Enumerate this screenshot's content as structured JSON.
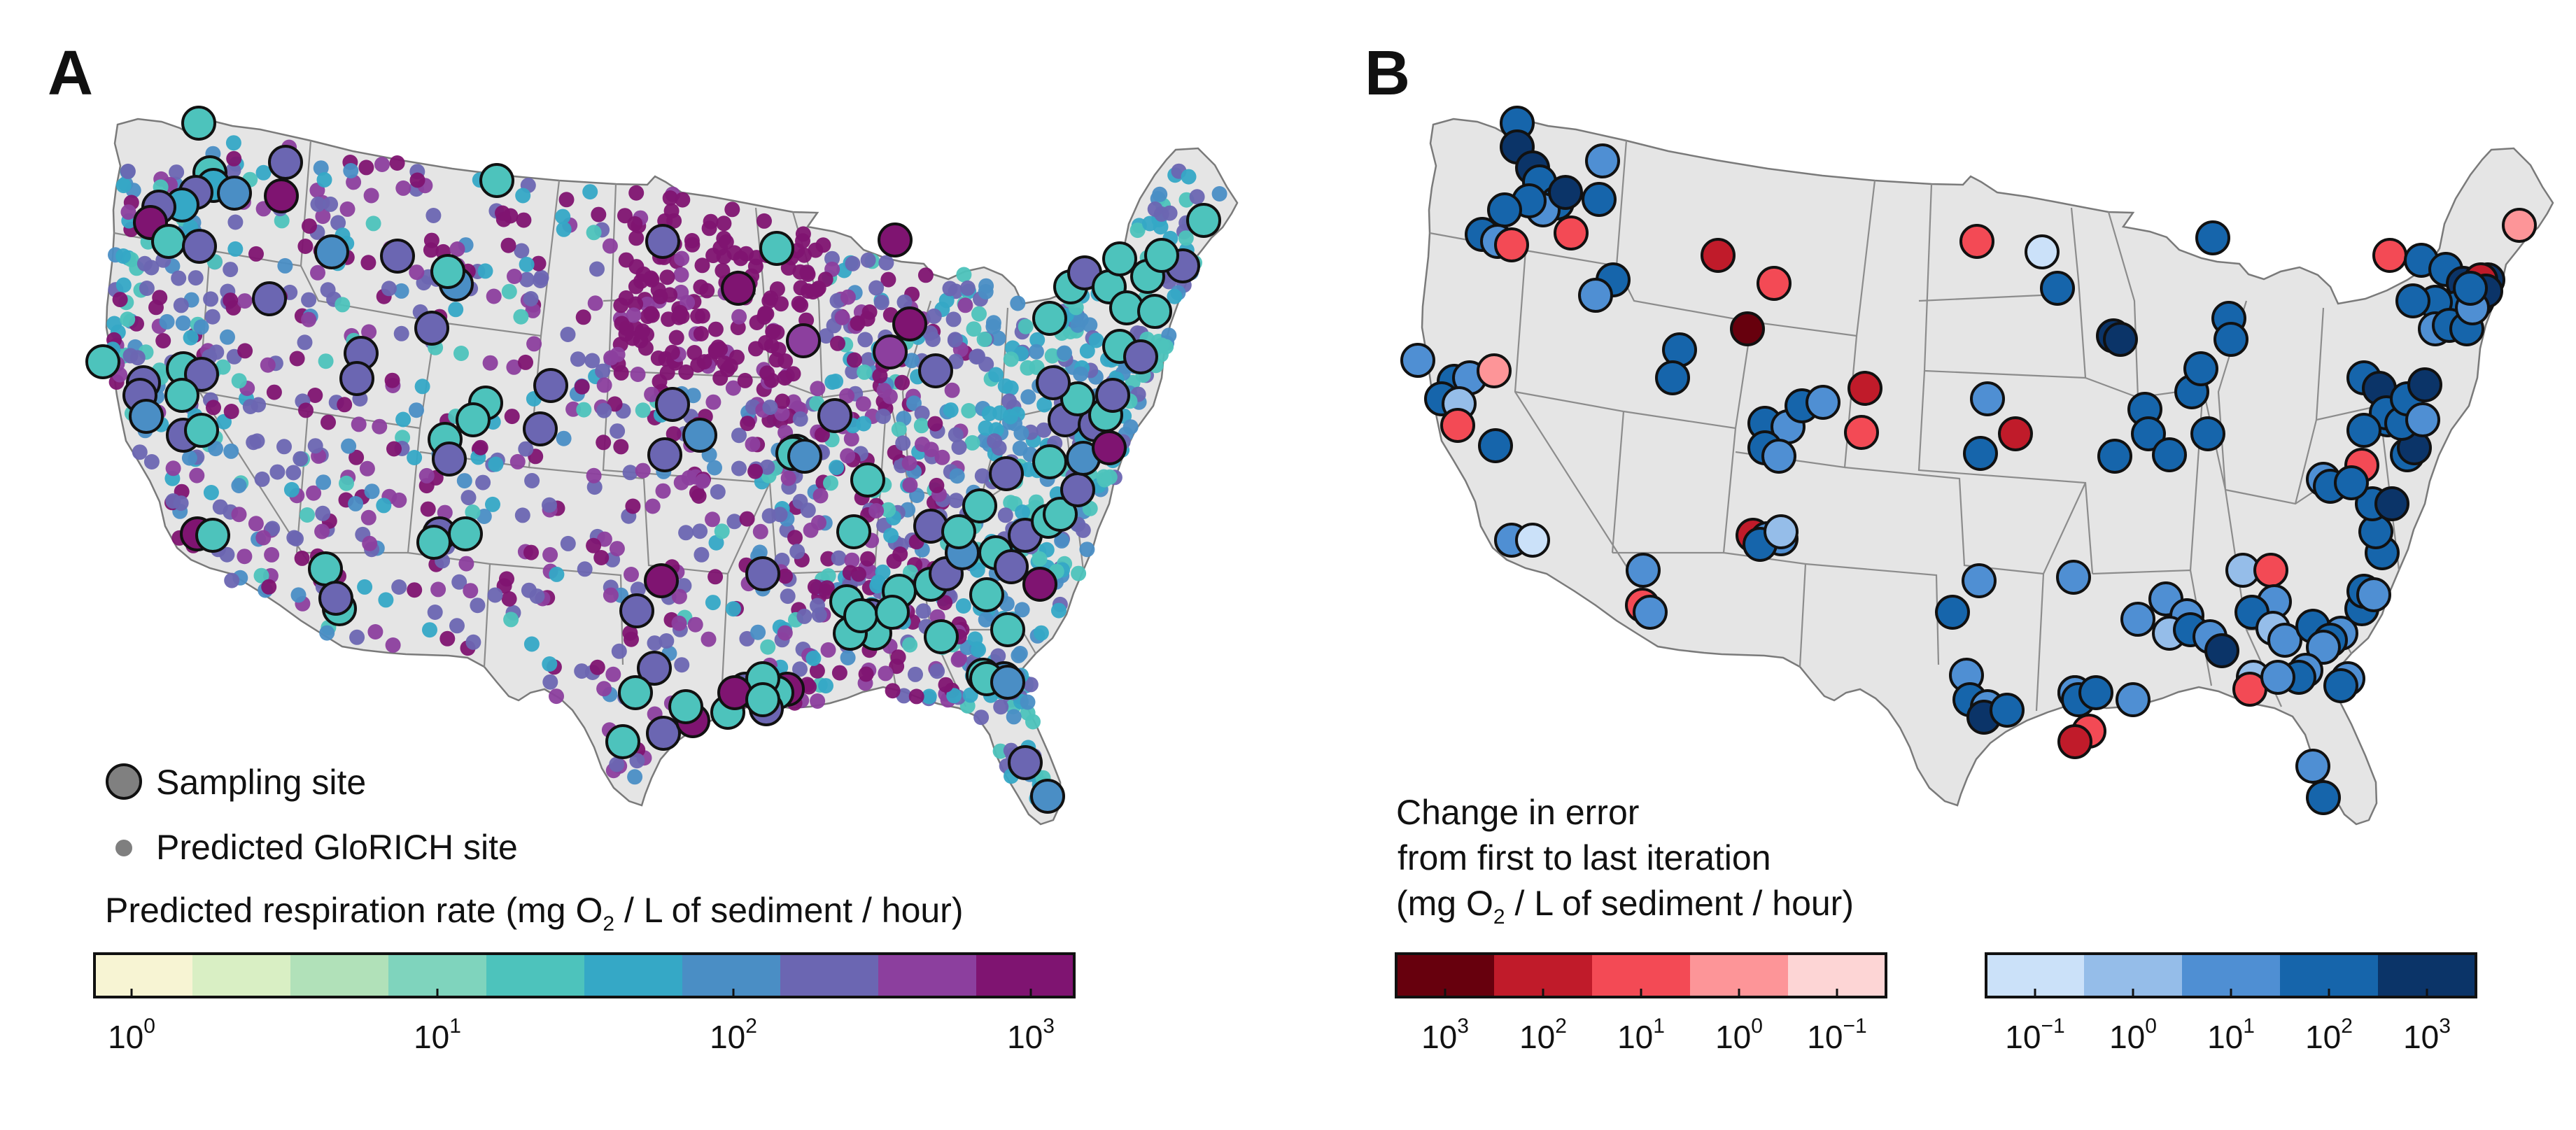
{
  "panels": [
    {
      "letter": "A",
      "legend": {
        "sampling_site": "Sampling site",
        "predicted_site": "Predicted GloRICH site"
      },
      "colorbar": {
        "title_pre": "Predicted respiration rate (mg O",
        "title_sub": "2",
        "title_post": " / L of sediment / hour)",
        "colors": [
          "#f7f4d3",
          "#d9efc4",
          "#b1e1b9",
          "#7fd4bd",
          "#4dc3bc",
          "#35a8c6",
          "#4a8ec5",
          "#6b66b2",
          "#8c3f9e",
          "#7f1471"
        ],
        "ticks": [
          {
            "base": "10",
            "exp": "0"
          },
          {
            "base": "10",
            "exp": "1"
          },
          {
            "base": "10",
            "exp": "2"
          },
          {
            "base": "10",
            "exp": "3"
          }
        ]
      }
    },
    {
      "letter": "B",
      "colorbar_title": [
        "Change in error",
        "from first to last iteration"
      ],
      "colorbar_title_line3": {
        "pre": "(mg O",
        "sub": "2",
        "post": " / L of sediment / hour)"
      },
      "neg_colorbar": {
        "colors": [
          "#67000d",
          "#c01b2a",
          "#f34a55",
          "#fd9598",
          "#fdd5d5"
        ],
        "ticks": [
          {
            "base": "10",
            "exp": "3"
          },
          {
            "base": "10",
            "exp": "2"
          },
          {
            "base": "10",
            "exp": "1"
          },
          {
            "base": "10",
            "exp": "0"
          },
          {
            "base": "10",
            "exp": "−1"
          }
        ]
      },
      "pos_colorbar": {
        "colors": [
          "#cbe1f9",
          "#95bde9",
          "#4f8fd3",
          "#1665ab",
          "#0b3468"
        ],
        "ticks": [
          {
            "base": "10",
            "exp": "−1"
          },
          {
            "base": "10",
            "exp": "0"
          },
          {
            "base": "10",
            "exp": "1"
          },
          {
            "base": "10",
            "exp": "2"
          },
          {
            "base": "10",
            "exp": "3"
          }
        ]
      }
    }
  ],
  "colors": {
    "map_fill": "#e5e5e5",
    "state_border": "#7a7a7a",
    "sampling_legend_fill": "#808080",
    "predicted_legend_fill": "#7f7f7f"
  }
}
